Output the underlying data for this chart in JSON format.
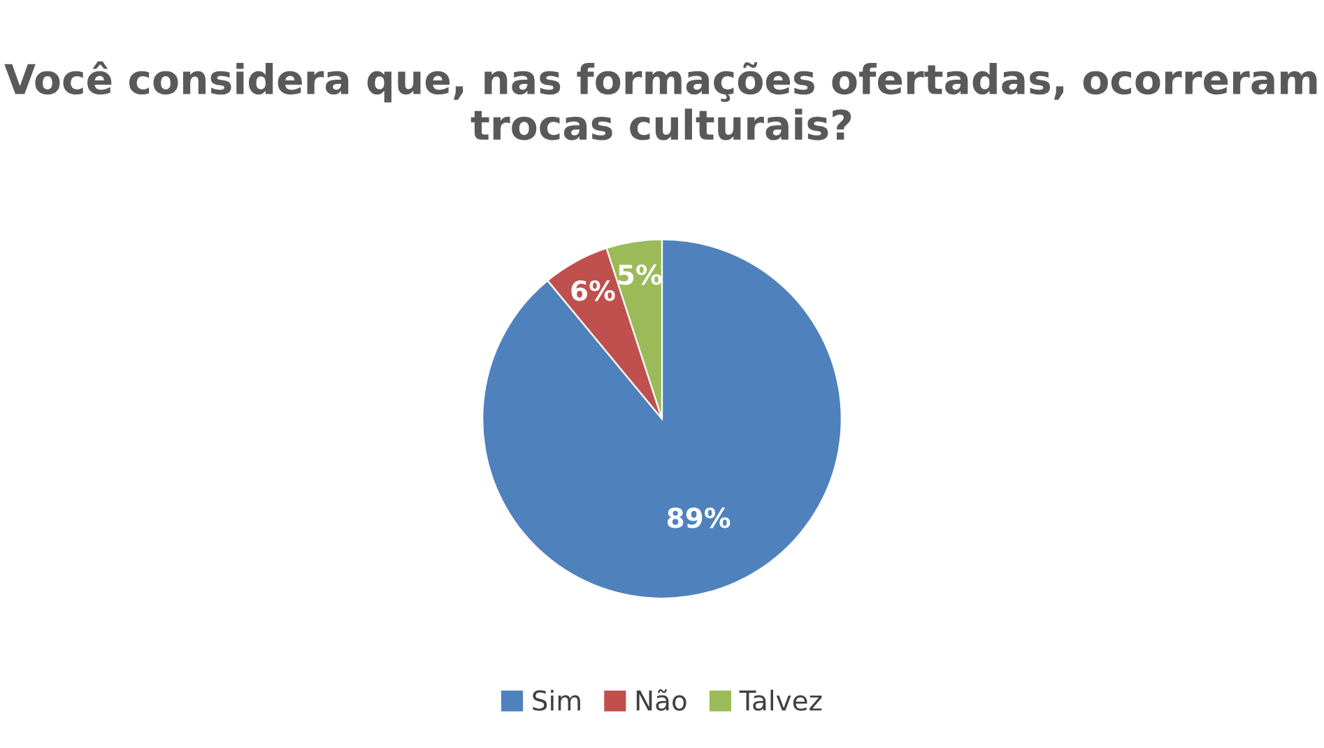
{
  "chart_data": {
    "type": "pie",
    "title": "Você considera que, nas formações ofertadas, ocorreram trocas culturais?",
    "categories": [
      "Sim",
      "Não",
      "Talvez"
    ],
    "values": [
      89,
      6,
      5
    ],
    "colors": [
      "#4f81bd",
      "#c0504d",
      "#9bbb59"
    ],
    "value_labels": [
      "89%",
      "6%",
      "5%"
    ],
    "legend": "bottom"
  }
}
